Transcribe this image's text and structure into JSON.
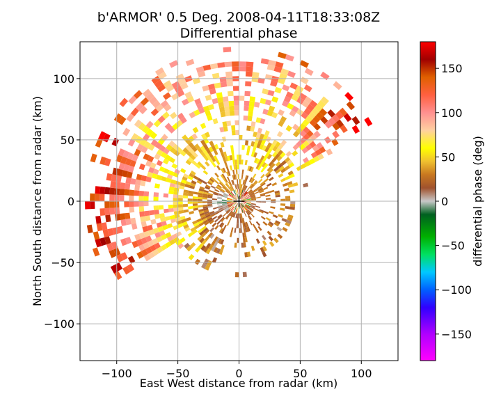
{
  "chart_data": {
    "type": "heatmap",
    "title_line1": "b'ARMOR' 0.5 Deg. 2008-04-11T18:33:08Z",
    "title_line2": "Differential phase",
    "xlabel": "East West distance from radar (km)",
    "ylabel": "North South distance from radar (km)",
    "xlim": [
      -130,
      130
    ],
    "ylim": [
      -130,
      130
    ],
    "xticks": [
      -100,
      -50,
      0,
      50,
      100
    ],
    "yticks": [
      -100,
      -50,
      0,
      50,
      100
    ],
    "xtick_labels": [
      "−100",
      "−50",
      "0",
      "50",
      "100"
    ],
    "ytick_labels": [
      "−100",
      "−50",
      "0",
      "50",
      "100"
    ],
    "grid": true,
    "radar_location": [
      0,
      0
    ],
    "colorbar": {
      "label": "differential phase (deg)",
      "vmin": -180,
      "vmax": 180,
      "ticks": [
        -150,
        -100,
        -50,
        0,
        50,
        100,
        150
      ],
      "tick_labels": [
        "−150",
        "−100",
        "−50",
        "0",
        "50",
        "100",
        "150"
      ],
      "stops": [
        {
          "v": -180,
          "color": "#ff00ff"
        },
        {
          "v": -150,
          "color": "#b000ff"
        },
        {
          "v": -120,
          "color": "#3000ff"
        },
        {
          "v": -100,
          "color": "#0060ff"
        },
        {
          "v": -80,
          "color": "#00c8ff"
        },
        {
          "v": -60,
          "color": "#00e060"
        },
        {
          "v": -40,
          "color": "#00b000"
        },
        {
          "v": -15,
          "color": "#006020"
        },
        {
          "v": 0,
          "color": "#c8c8c8"
        },
        {
          "v": 15,
          "color": "#a0522d"
        },
        {
          "v": 30,
          "color": "#c87820"
        },
        {
          "v": 45,
          "color": "#f0c030"
        },
        {
          "v": 60,
          "color": "#ffff00"
        },
        {
          "v": 80,
          "color": "#ffd0a0"
        },
        {
          "v": 100,
          "color": "#ff9090"
        },
        {
          "v": 120,
          "color": "#ff6040"
        },
        {
          "v": 140,
          "color": "#e06000"
        },
        {
          "v": 160,
          "color": "#a00000"
        },
        {
          "v": 180,
          "color": "#ff0000"
        }
      ]
    }
  }
}
